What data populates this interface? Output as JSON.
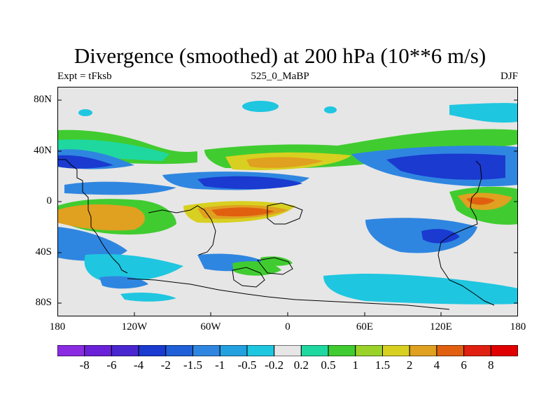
{
  "title": "Divergence (smoothed) at 200 hPa (10**6 m/s)",
  "subtitle_left": "Expt = tFksb",
  "subtitle_center": "525_0_MaBP",
  "subtitle_right": "DJF",
  "y_axis_labels": [
    "80N",
    "40N",
    "0",
    "40S",
    "80S"
  ],
  "x_axis_labels": [
    "180",
    "120W",
    "60W",
    "0",
    "60E",
    "120E",
    "180"
  ],
  "colorbar": {
    "labels": [
      "-8",
      "-6",
      "-4",
      "-2",
      "-1.5",
      "-1",
      "-0.5",
      "-0.2",
      "0.2",
      "0.5",
      "1",
      "1.5",
      "2",
      "4",
      "6",
      "8"
    ],
    "colors": [
      "#8a2be2",
      "#6a20d8",
      "#4a26d0",
      "#1a3ad0",
      "#1f5fd8",
      "#2f86e0",
      "#23a0e0",
      "#1fc6e0",
      "#e6e6e6",
      "#1fd8a0",
      "#40cc30",
      "#9ad22a",
      "#d8d020",
      "#e0a020",
      "#e06010",
      "#e02010",
      "#e00000"
    ]
  },
  "field_colors": {
    "neutral": "#e6e6e6",
    "blue_strong": "#1a3ad0",
    "blue": "#2f86e0",
    "cyan": "#1fc6e0",
    "teal": "#1fd8a0",
    "green": "#40cc30",
    "yellow": "#d8d020",
    "orange": "#e0a020",
    "red": "#e06010"
  }
}
